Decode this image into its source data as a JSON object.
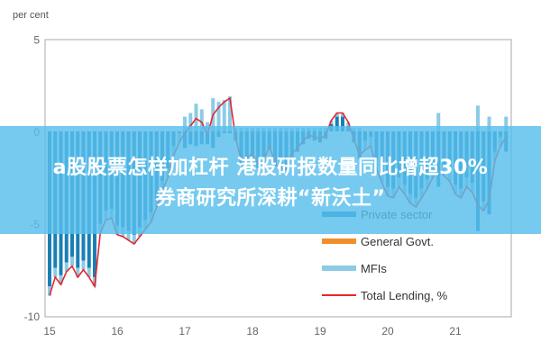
{
  "chart_data": {
    "type": "bar",
    "ylabel": "per cent",
    "ylim": [
      -10,
      5
    ],
    "yticks": [
      "5",
      "0",
      "-5",
      "-10"
    ],
    "xticks": [
      "15",
      "16",
      "17",
      "18",
      "19",
      "20",
      "21"
    ],
    "x_start": 2015.0,
    "x_step_months": 1,
    "legend_placement": "bottom-right",
    "series": [
      {
        "name": "Private sector",
        "kind": "bar",
        "color": "#1a7fb5",
        "values": [
          -8.4,
          -7.4,
          -7.8,
          -7.1,
          -6.8,
          -7.4,
          -7.0,
          -7.4,
          -7.9,
          -5.0,
          -4.3,
          -4.2,
          -5.1,
          -5.2,
          -5.4,
          -5.6,
          -5.2,
          -4.8,
          -4.4,
          -3.6,
          -2.7,
          -2.0,
          -0.8,
          -0.1,
          -0.9,
          -0.7,
          -0.8,
          -0.7,
          -0.7,
          -0.9,
          -0.3,
          -0.1,
          -0.1,
          -0.5,
          -1.8,
          -1.6,
          -1.4,
          -2.0,
          -1.8,
          -1.0,
          -1.9,
          -2.3,
          -2.1,
          -1.4,
          -1.1,
          -0.7,
          -0.4,
          -0.5,
          -0.6,
          -0.4,
          0.4,
          0.8,
          0.8,
          0.3,
          -0.6,
          -1.5,
          -0.5,
          -0.3,
          -1.5,
          -2.3,
          -3.0,
          -3.1,
          -2.5,
          -2.9,
          -3.4,
          -3.6,
          -3.1,
          -2.6,
          -2.0,
          -3.0,
          -1.9,
          -2.2,
          -2.9,
          -3.1,
          -2.5,
          -2.8,
          -5.4,
          -3.8,
          -4.5,
          -1.1,
          -0.3,
          -1.1
        ]
      },
      {
        "name": "General Govt.",
        "kind": "bar",
        "color": "#f28e2b"
      },
      {
        "name": "MFIs",
        "kind": "bar",
        "color": "#8ccbe6",
        "values": [
          -0.5,
          -0.5,
          -0.5,
          -0.5,
          -0.5,
          -0.5,
          -0.5,
          -0.5,
          -0.5,
          -0.5,
          -0.5,
          -0.5,
          -0.5,
          -0.5,
          -0.5,
          -0.5,
          -0.5,
          -0.5,
          -0.5,
          -0.5,
          -0.5,
          -0.5,
          -0.5,
          -0.5,
          0.8,
          1.0,
          1.5,
          1.2,
          0.5,
          1.8,
          1.6,
          1.7,
          1.9,
          0.2,
          0.2,
          0.2,
          0.2,
          0.2,
          0.2,
          0.2,
          0.2,
          0.2,
          0.2,
          0.2,
          0.2,
          0.2,
          0.2,
          0.2,
          0.2,
          0.2,
          0.2,
          0.2,
          0.2,
          0.2,
          0.2,
          0.2,
          -0.5,
          -0.5,
          -0.5,
          -0.5,
          -0.5,
          -0.5,
          -0.5,
          -0.5,
          -0.5,
          -0.5,
          -0.5,
          -0.5,
          -0.5,
          1.0,
          -0.5,
          -0.5,
          -0.5,
          -0.5,
          -0.5,
          -0.5,
          1.4,
          -0.5,
          0.8,
          -0.5,
          -0.5,
          0.8
        ]
      },
      {
        "name": "Total Lending, %",
        "kind": "line",
        "color": "#e8262b",
        "values": [
          -8.9,
          -7.9,
          -8.3,
          -7.6,
          -7.3,
          -7.9,
          -7.5,
          -7.9,
          -8.4,
          -5.5,
          -4.8,
          -4.7,
          -5.6,
          -5.7,
          -5.9,
          -6.1,
          -5.7,
          -5.3,
          -4.9,
          -4.1,
          -3.2,
          -2.5,
          -1.3,
          -0.6,
          -0.1,
          0.3,
          0.7,
          0.5,
          -0.2,
          0.9,
          1.3,
          1.6,
          1.8,
          -0.3,
          -1.6,
          -1.4,
          -1.2,
          -1.8,
          -1.6,
          -0.8,
          -1.7,
          -2.1,
          -1.9,
          -1.2,
          -0.9,
          -0.5,
          -0.2,
          -0.3,
          -0.4,
          -0.2,
          0.6,
          1.0,
          1.0,
          0.5,
          -0.4,
          -1.3,
          -1.0,
          -0.8,
          -2.0,
          -2.8,
          -3.5,
          -3.6,
          -3.0,
          -3.4,
          -3.9,
          -4.1,
          -3.6,
          -3.1,
          -2.5,
          -2.0,
          -2.4,
          -2.7,
          -3.4,
          -3.6,
          -3.0,
          -3.3,
          -4.0,
          -4.3,
          -3.7,
          -1.6,
          -0.8,
          -0.3
        ]
      }
    ]
  },
  "banner": {
    "line1": "a股股票怎样加杠杆 港股研报数量同比增超30%",
    "line2": "券商研究所深耕“新沃土”",
    "color": "#58beec"
  }
}
